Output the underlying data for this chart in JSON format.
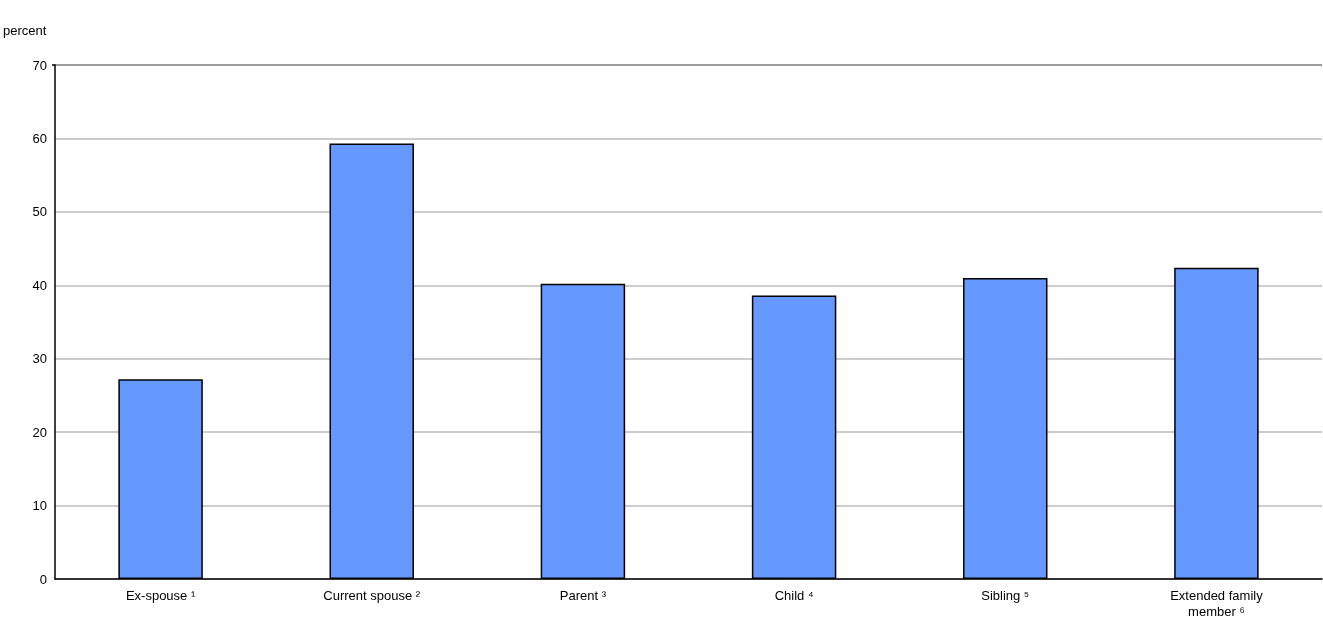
{
  "chart_data": {
    "type": "bar",
    "ylabel": "percent",
    "categories": [
      "Ex-spouse ¹",
      "Current spouse ²",
      "Parent ³",
      "Child ⁴",
      "Sibling ⁵",
      "Extended family\nmember ⁶"
    ],
    "values": [
      27.2,
      59.3,
      40.2,
      38.6,
      41.0,
      42.4
    ],
    "color": "#6699ff",
    "ylim": [
      0,
      70
    ],
    "yticks": [
      0,
      10,
      20,
      30,
      40,
      50,
      60,
      70
    ],
    "grid": "y"
  }
}
